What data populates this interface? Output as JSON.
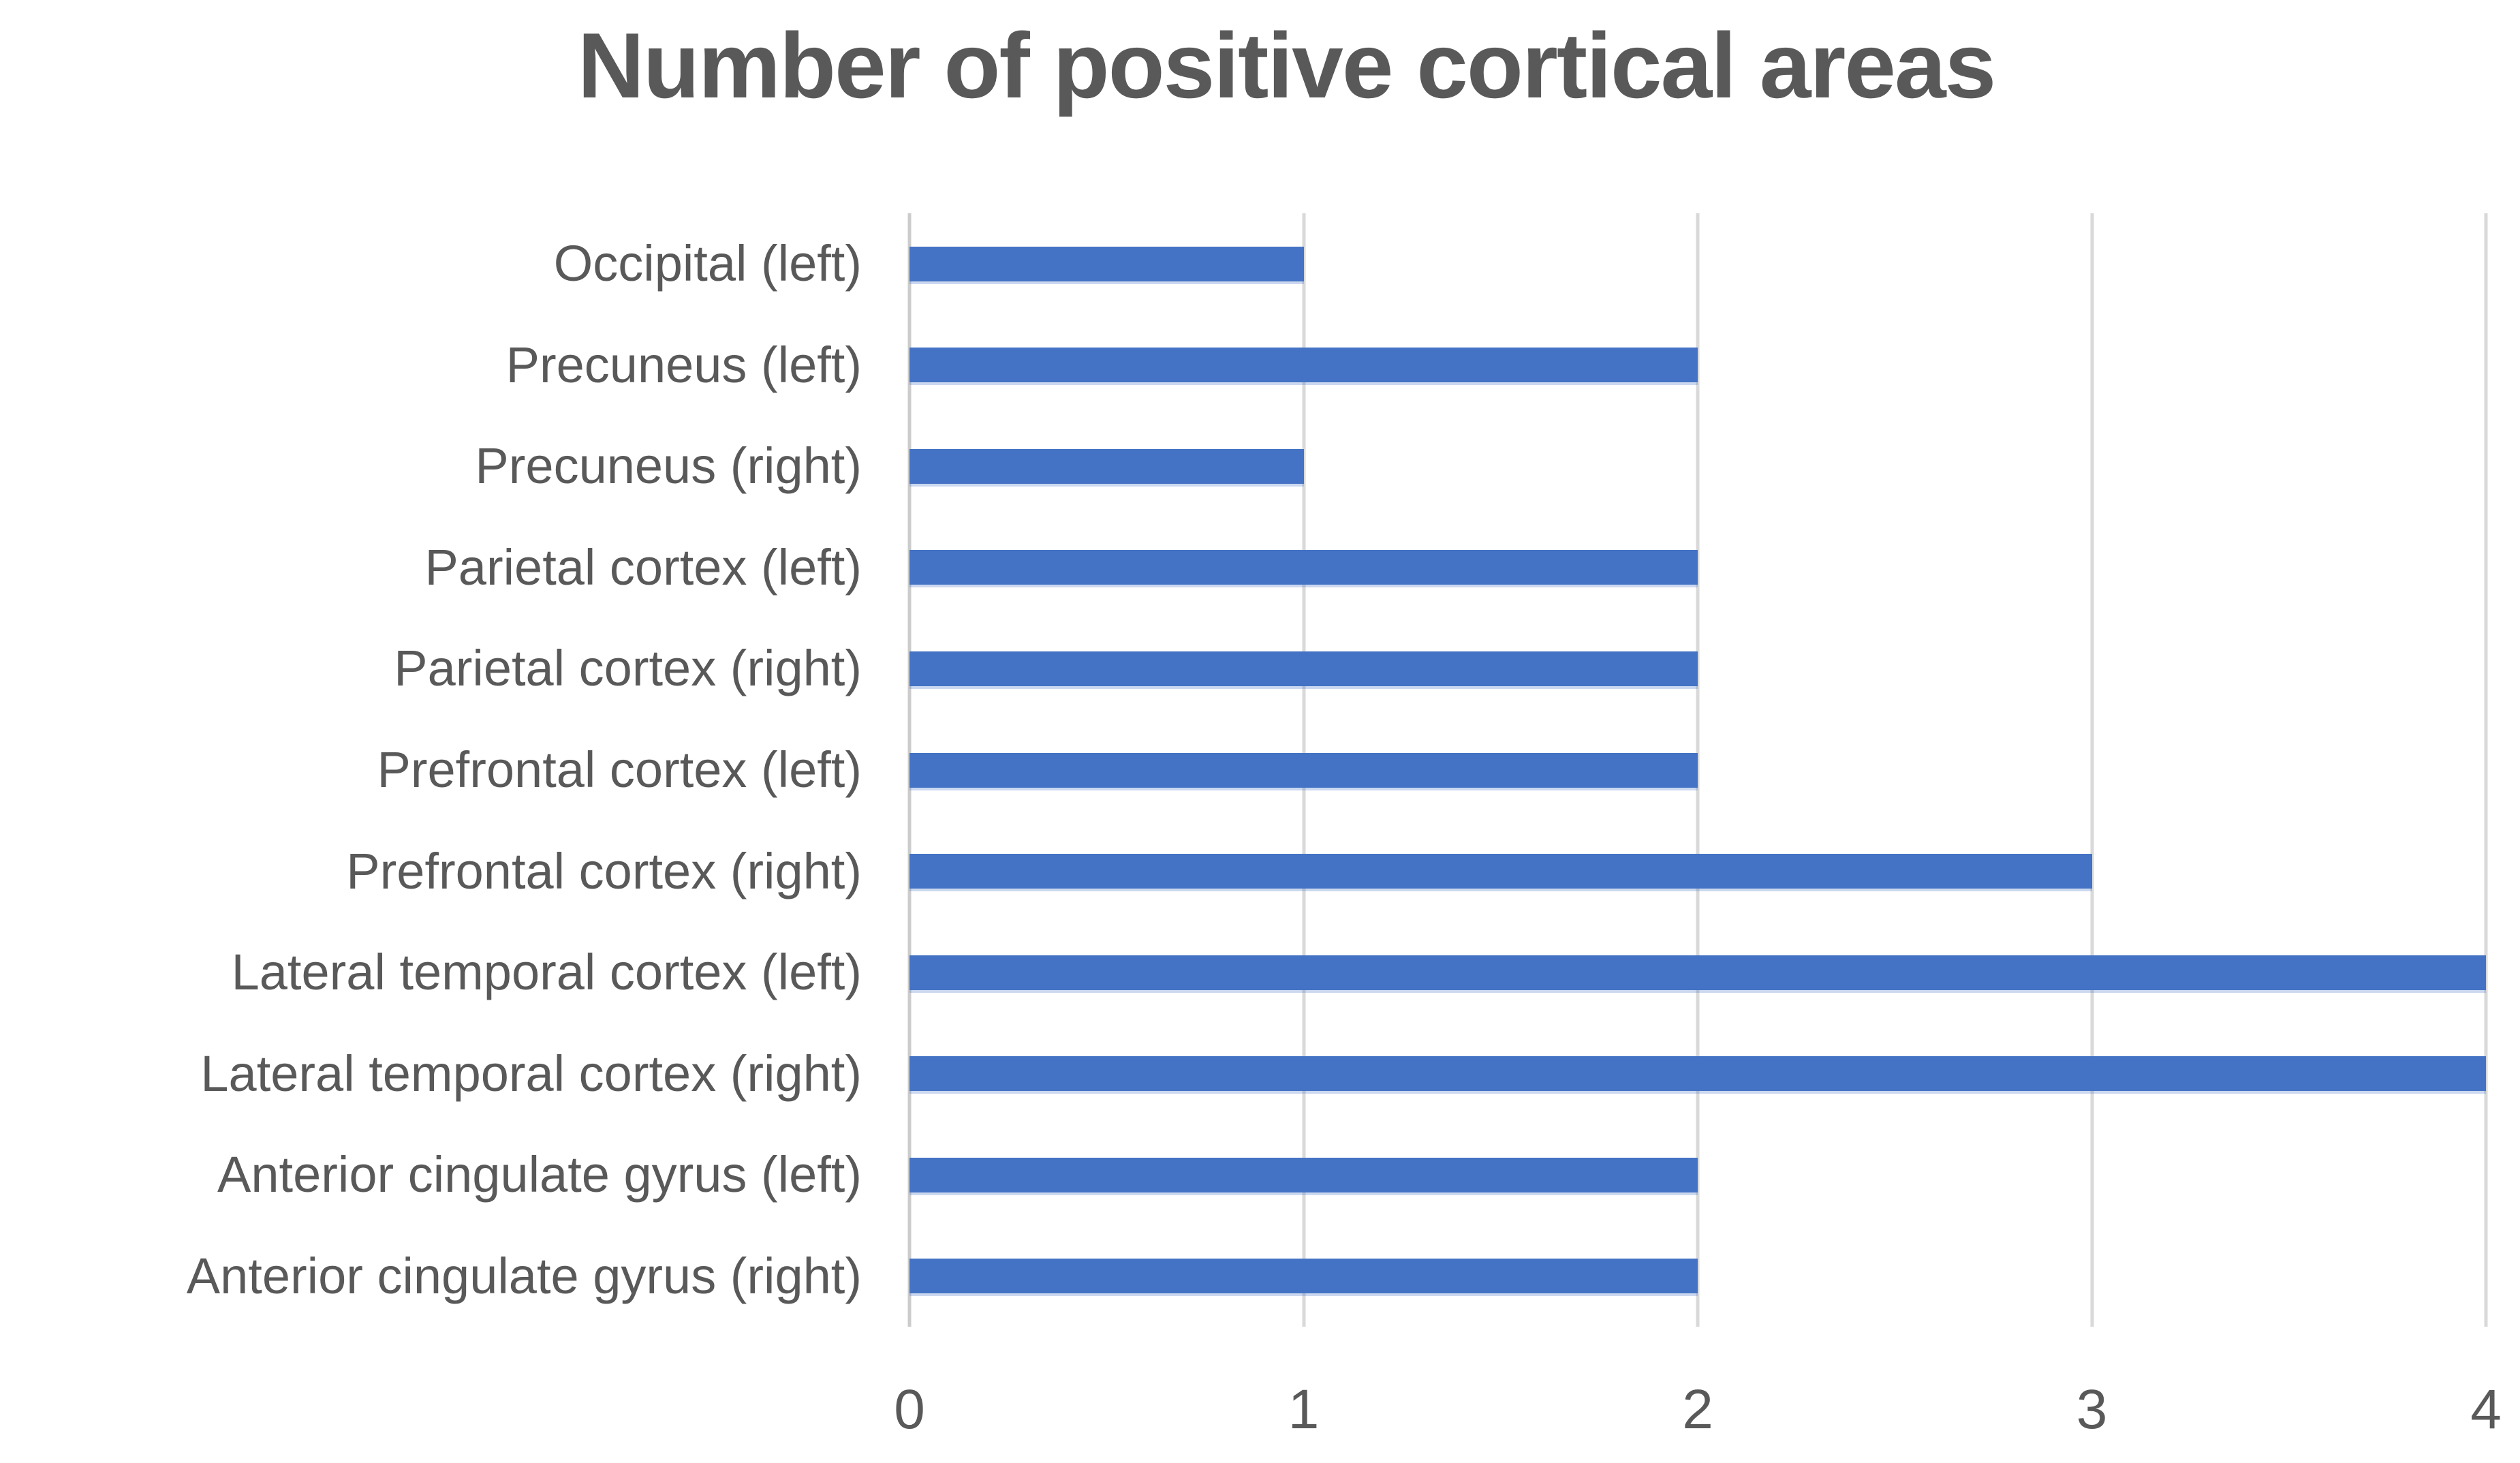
{
  "chart_data": {
    "type": "bar",
    "orientation": "horizontal",
    "title": "Number of positive cortical areas",
    "categories": [
      "Occipital (left)",
      "Precuneus (left)",
      "Precuneus (right)",
      "Parietal cortex (left)",
      "Parietal cortex (right)",
      "Prefrontal cortex (left)",
      "Prefrontal cortex (right)",
      "Lateral temporal cortex (left)",
      "Lateral temporal cortex (right)",
      "Anterior cingulate gyrus (left)",
      "Anterior cingulate gyrus (right)"
    ],
    "values": [
      1,
      2,
      1,
      2,
      2,
      2,
      3,
      4,
      4,
      2,
      2
    ],
    "xlabel": "",
    "ylabel": "",
    "xlim": [
      0,
      4
    ],
    "x_ticks": [
      0,
      1,
      2,
      3,
      4
    ],
    "grid": "vertical-only",
    "legend_position": "none",
    "bar_color": "#4472C4",
    "gridline_color": "#D9D9D9",
    "axis_line_color": "#CCCCCC",
    "text_color": "#595959",
    "background_color": "#FFFFFF"
  }
}
